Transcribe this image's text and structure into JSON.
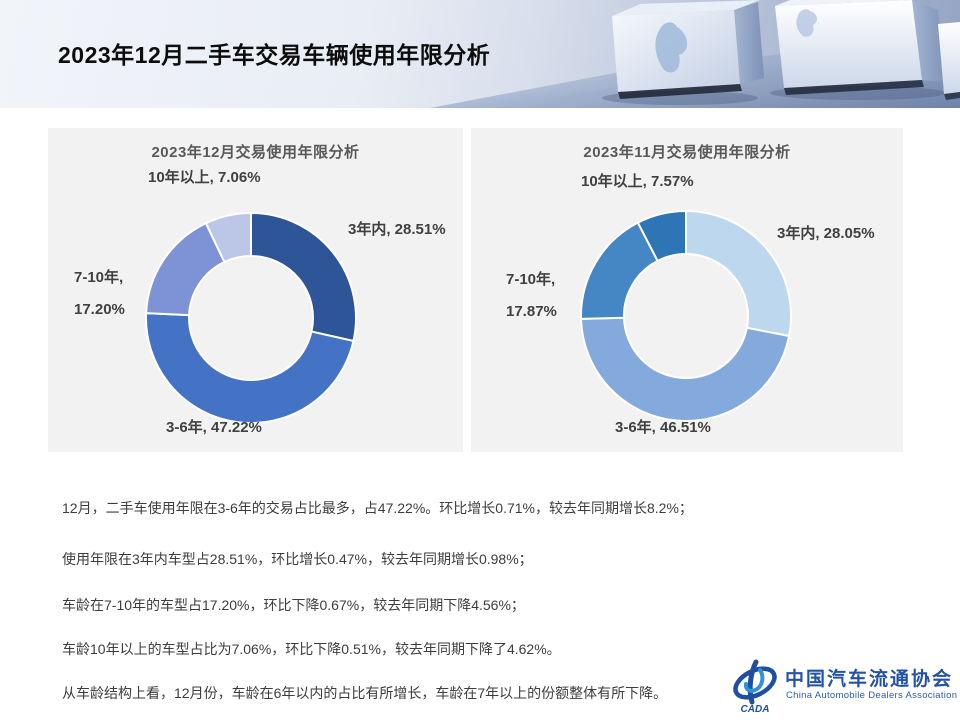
{
  "slide_title": "2023年12月二手车交易车辆使用年限分析",
  "panels": [
    {
      "title": "2023年12月交易使用年限分析",
      "labels": {
        "seg1": "3年内, 28.51%",
        "seg2": "3-6年, 47.22%",
        "seg3_line1": "7-10年,",
        "seg3_line2": "17.20%",
        "seg4": "10年以上, 7.06%"
      }
    },
    {
      "title": "2023年11月交易使用年限分析",
      "labels": {
        "seg1": "3年内, 28.05%",
        "seg2": "3-6年, 46.51%",
        "seg3_line1": "7-10年,",
        "seg3_line2": "17.87%",
        "seg4": "10年以上, 7.57%"
      }
    }
  ],
  "chart_data": [
    {
      "type": "pie",
      "subtype": "donut",
      "title": "2023年12月交易使用年限分析",
      "categories": [
        "3年内",
        "3-6年",
        "7-10年",
        "10年以上"
      ],
      "values": [
        28.51,
        47.22,
        17.2,
        7.06
      ],
      "unit": "%",
      "colors": [
        "#2E5597",
        "#4472C4",
        "#7E93D5",
        "#BCC7E8"
      ],
      "start_angle_deg": 0,
      "direction": "clockwise",
      "legend": "none",
      "data_labels": "outside"
    },
    {
      "type": "pie",
      "subtype": "donut",
      "title": "2023年11月交易使用年限分析",
      "categories": [
        "3年内",
        "3-6年",
        "7-10年",
        "10年以上"
      ],
      "values": [
        28.05,
        46.51,
        17.87,
        7.57
      ],
      "unit": "%",
      "colors": [
        "#BDD7EE",
        "#84A9DC",
        "#4587C4",
        "#2E75B6"
      ],
      "start_angle_deg": 0,
      "direction": "clockwise",
      "legend": "none",
      "data_labels": "outside"
    }
  ],
  "bullets": [
    "12月，二手车使用年限在3-6年的交易占比最多，占47.22%。环比增长0.71%，较去年同期增长8.2%；",
    "使用年限在3年内车型占28.51%，环比增长0.47%，较去年同期增长0.98%；",
    "车龄在7-10年的车型占17.20%，环比下降0.67%，较去年同期下降4.56%；",
    "车龄10年以上的车型占比为7.06%，环比下降0.51%，较去年同期下降了4.62%。",
    "从车龄结构上看，12月份，车龄在6年以内的占比有所增长，车龄在7年以上的份额整体有所下降。"
  ],
  "logo": {
    "cn": "中国汽车流通协会",
    "en": "China Automobile Dealers Association",
    "emblem_text": "CADA"
  },
  "colors": {
    "panel_bg": "#F2F2F2",
    "chart_title": "#595959",
    "data_label": "#404040",
    "body_text": "#3D3D3D",
    "logo_blue": "#2453A6"
  }
}
